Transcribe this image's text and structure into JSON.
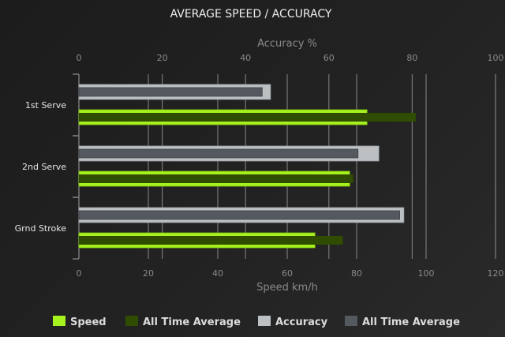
{
  "chart_data": {
    "type": "bar",
    "orientation": "horizontal",
    "title": "AVERAGE SPEED / ACCURACY",
    "categories": [
      "1st Serve",
      "2nd Serve",
      "Grnd Stroke"
    ],
    "top_axis": {
      "label": "Accuracy %",
      "range": [
        0,
        100
      ],
      "ticks": [
        0,
        20,
        40,
        60,
        80,
        100
      ]
    },
    "bottom_axis": {
      "label": "Speed km/h",
      "range": [
        0,
        120
      ],
      "ticks": [
        0,
        20,
        40,
        60,
        80,
        100,
        120
      ]
    },
    "grid": true,
    "legend_position": "bottom",
    "series": [
      {
        "name": "Speed",
        "axis": "bottom",
        "color": "#a6f21e",
        "values": [
          83,
          78,
          68
        ]
      },
      {
        "name": "All Time Average",
        "axis": "bottom",
        "color": "#2f4c00",
        "values": [
          97,
          79,
          76
        ]
      },
      {
        "name": "Accuracy",
        "axis": "top",
        "color": "#bcc0c3",
        "values": [
          46,
          72,
          78
        ]
      },
      {
        "name": "All Time Average",
        "axis": "top",
        "color": "#545960",
        "values": [
          44,
          67,
          77
        ]
      }
    ]
  }
}
